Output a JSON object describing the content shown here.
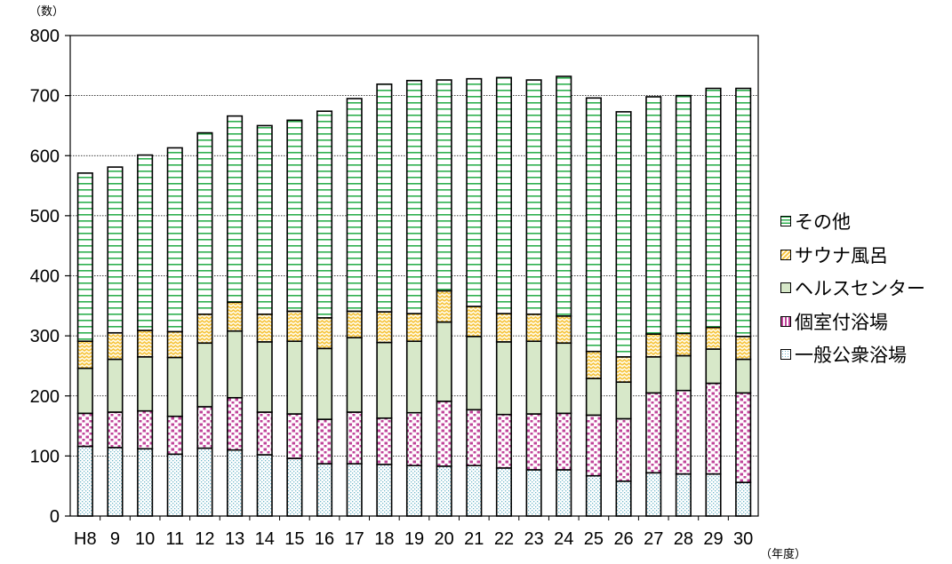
{
  "chart_data": {
    "type": "bar",
    "stacked": true,
    "categories": [
      "H8",
      "9",
      "10",
      "11",
      "12",
      "13",
      "14",
      "15",
      "16",
      "17",
      "18",
      "19",
      "20",
      "21",
      "22",
      "23",
      "24",
      "25",
      "26",
      "27",
      "28",
      "29",
      "30"
    ],
    "series": [
      {
        "name": "一般公衆浴場",
        "color": "#d8eef2",
        "pattern": "dots",
        "values": [
          116,
          114,
          112,
          103,
          113,
          110,
          102,
          96,
          87,
          87,
          86,
          84,
          83,
          84,
          80,
          77,
          77,
          67,
          58,
          72,
          70,
          70,
          56
        ]
      },
      {
        "name": "個室付浴場",
        "color": "#c0449a",
        "pattern": "squares",
        "values": [
          55,
          59,
          63,
          63,
          69,
          87,
          71,
          74,
          74,
          86,
          77,
          88,
          108,
          93,
          89,
          93,
          94,
          101,
          104,
          133,
          139,
          151,
          149
        ]
      },
      {
        "name": "ヘルスセンター",
        "color": "#d7e8c9",
        "pattern": "solid",
        "values": [
          75,
          88,
          90,
          98,
          106,
          111,
          117,
          121,
          118,
          124,
          126,
          119,
          132,
          122,
          121,
          121,
          117,
          61,
          61,
          60,
          58,
          57,
          56
        ]
      },
      {
        "name": "サウナ風呂",
        "color": "#f6c33a",
        "pattern": "wave",
        "values": [
          45,
          44,
          44,
          43,
          48,
          48,
          46,
          50,
          51,
          44,
          51,
          46,
          52,
          50,
          47,
          45,
          45,
          45,
          42,
          38,
          37,
          36,
          38
        ]
      },
      {
        "name": "その他",
        "color": "#2eb04f",
        "pattern": "hlines",
        "values": [
          280,
          276,
          292,
          306,
          302,
          310,
          314,
          318,
          344,
          354,
          379,
          388,
          351,
          379,
          393,
          390,
          399,
          422,
          408,
          395,
          396,
          398,
          413
        ]
      }
    ],
    "ylim": [
      0,
      800
    ],
    "yticks": [
      0,
      100,
      200,
      300,
      400,
      500,
      600,
      700,
      800
    ],
    "ylabel": "（数）",
    "xlabel": "（年度）",
    "grid": true,
    "legend": "right",
    "legend_order": [
      "その他",
      "サウナ風呂",
      "ヘルスセンター",
      "個室付浴場",
      "一般公衆浴場"
    ]
  }
}
